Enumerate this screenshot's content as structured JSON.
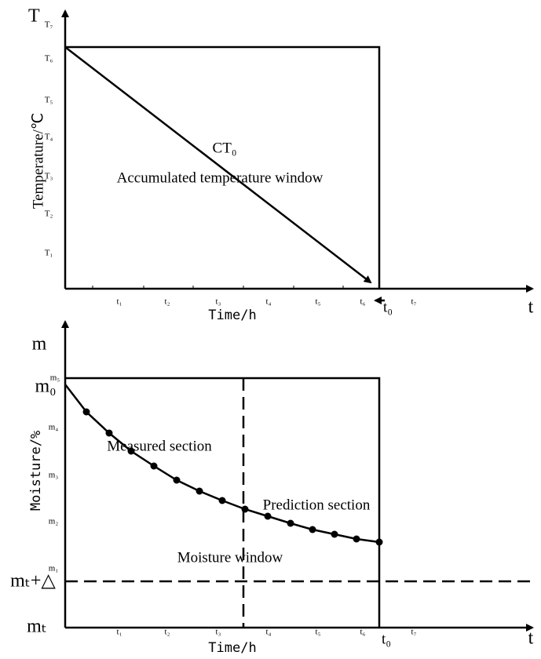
{
  "top": {
    "y_symbol": "T",
    "y_label": "Temperature/℃",
    "y_ticks": [
      "T₁",
      "T₂",
      "T₃",
      "T₄",
      "T₅",
      "T₆",
      "T₇"
    ],
    "x_ticks": [
      "t₁",
      "t₂",
      "t₃",
      "t₄",
      "t₅",
      "t₆",
      "t₇"
    ],
    "x_label": "Time/h",
    "x_symbol": "t",
    "end_time": "t₀",
    "line_label": "CT₀",
    "window_label": "Accumulated temperature window"
  },
  "bottom": {
    "y_symbol": "m",
    "start_label": "m₀",
    "threshold_label": "mₜ+△",
    "origin_label": "mₜ",
    "y_label": "Moisture/%",
    "y_ticks": [
      "m₁",
      "m₂",
      "m₃",
      "m₄",
      "m₅"
    ],
    "x_ticks": [
      "t₁",
      "t₂",
      "t₃",
      "t₄",
      "t₅",
      "t₆",
      "t₇"
    ],
    "x_label": "Time/h",
    "x_symbol": "t",
    "end_time": "t₀",
    "measured_label": "Measured section",
    "prediction_label": "Prediction section",
    "window_label": "Moisture window"
  }
}
